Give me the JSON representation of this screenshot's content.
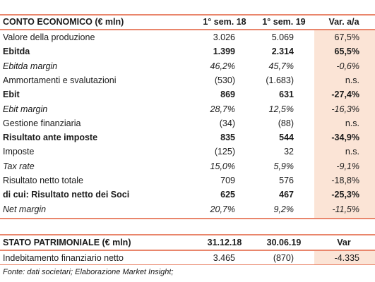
{
  "table1": {
    "header": [
      "CONTO ECONOMICO (€ mln)",
      "1° sem. 18",
      "1° sem. 19",
      "Var. a/a"
    ],
    "rows": [
      [
        "Valore della produzione",
        "3.026",
        "5.069",
        "67,5%"
      ],
      [
        "Ebitda",
        "1.399",
        "2.314",
        "65,5%"
      ],
      [
        "Ebitda margin",
        "46,2%",
        "45,7%",
        "-0,6%"
      ],
      [
        "Ammortamenti e svalutazioni",
        "(530)",
        "(1.683)",
        "n.s."
      ],
      [
        "Ebit",
        "869",
        "631",
        "-27,4%"
      ],
      [
        "Ebit margin",
        "28,7%",
        "12,5%",
        "-16,3%"
      ],
      [
        "Gestione finanziaria",
        "(34)",
        "(88)",
        "n.s."
      ],
      [
        "Risultato ante imposte",
        "835",
        "544",
        "-34,9%"
      ],
      [
        "Imposte",
        "(125)",
        "32",
        "n.s."
      ],
      [
        "Tax rate",
        "15,0%",
        "5,9%",
        "-9,1%"
      ],
      [
        "Risultato netto totale",
        "709",
        "576",
        "-18,8%"
      ],
      [
        "di cui: Risultato netto dei Soci",
        "625",
        "467",
        "-25,3%"
      ],
      [
        "Net margin",
        "20,7%",
        "9,2%",
        "-11,5%"
      ]
    ]
  },
  "table2": {
    "header": [
      "STATO PATRIMONIALE (€ mln)",
      "31.12.18",
      "30.06.19",
      "Var"
    ],
    "rows": [
      [
        "Indebitamento finanziario netto",
        "3.465",
        "(870)",
        "-4.335"
      ]
    ]
  },
  "footnote": "Fonte: dati societari; Elaborazione Market Insight;"
}
